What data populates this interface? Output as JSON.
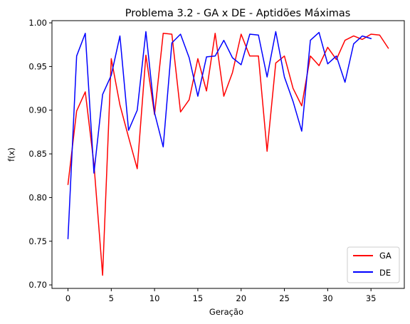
{
  "chart_data": {
    "type": "line",
    "title": "Problema 3.2 - GA x DE - Aptidões Máximas",
    "xlabel": "Geração",
    "ylabel": "f(x)",
    "xlim": [
      -1.85,
      38.85
    ],
    "ylim": [
      0.696,
      1.0025
    ],
    "xticks": [
      0,
      5,
      10,
      15,
      20,
      25,
      30,
      35
    ],
    "yticks": [
      0.7,
      0.75,
      0.8,
      0.85,
      0.9,
      0.95,
      1.0
    ],
    "ytick_labels": [
      "0.70",
      "0.75",
      "0.80",
      "0.85",
      "0.90",
      "0.95",
      "1.00"
    ],
    "grid": false,
    "legend_position": "lower-right",
    "series": [
      {
        "name": "GA",
        "color": "#ff0000",
        "x": [
          0,
          1,
          2,
          3,
          4,
          5,
          6,
          7,
          8,
          9,
          10,
          11,
          12,
          13,
          14,
          15,
          16,
          17,
          18,
          19,
          20,
          21,
          22,
          23,
          24,
          25,
          26,
          27,
          28,
          29,
          30,
          31,
          32,
          33,
          34,
          35,
          36,
          37
        ],
        "values": [
          0.815,
          0.899,
          0.921,
          0.838,
          0.711,
          0.959,
          0.906,
          0.869,
          0.833,
          0.963,
          0.895,
          0.988,
          0.987,
          0.898,
          0.912,
          0.959,
          0.922,
          0.988,
          0.916,
          0.943,
          0.987,
          0.962,
          0.962,
          0.853,
          0.954,
          0.962,
          0.925,
          0.905,
          0.962,
          0.951,
          0.972,
          0.958,
          0.98,
          0.985,
          0.981,
          0.987,
          0.986,
          0.971
        ]
      },
      {
        "name": "DE",
        "color": "#0000ff",
        "x": [
          0,
          1,
          2,
          3,
          4,
          5,
          6,
          7,
          8,
          9,
          10,
          11,
          12,
          13,
          14,
          15,
          16,
          17,
          18,
          19,
          20,
          21,
          22,
          23,
          24,
          25,
          26,
          27,
          28,
          29,
          30,
          31,
          32,
          33,
          34,
          35
        ],
        "values": [
          0.753,
          0.962,
          0.988,
          0.828,
          0.918,
          0.94,
          0.985,
          0.877,
          0.9,
          0.99,
          0.897,
          0.858,
          0.977,
          0.987,
          0.96,
          0.916,
          0.961,
          0.962,
          0.98,
          0.96,
          0.952,
          0.987,
          0.986,
          0.938,
          0.99,
          0.938,
          0.91,
          0.876,
          0.98,
          0.989,
          0.953,
          0.962,
          0.932,
          0.976,
          0.985,
          0.982
        ]
      }
    ]
  }
}
